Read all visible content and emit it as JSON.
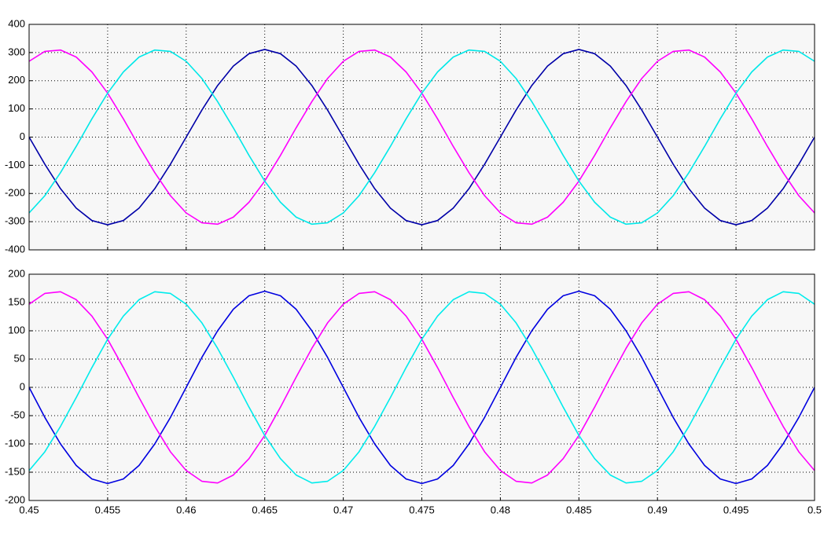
{
  "chart_data": [
    {
      "type": "line",
      "x": [
        0.45,
        0.451,
        0.452,
        0.453,
        0.454,
        0.455,
        0.456,
        0.457,
        0.458,
        0.459,
        0.46,
        0.461,
        0.462,
        0.463,
        0.464,
        0.465,
        0.466,
        0.467,
        0.468,
        0.469,
        0.47,
        0.471,
        0.472,
        0.473,
        0.474,
        0.475,
        0.476,
        0.477,
        0.478,
        0.479,
        0.48,
        0.481,
        0.482,
        0.483,
        0.484,
        0.485,
        0.486,
        0.487,
        0.488,
        0.489,
        0.49,
        0.491,
        0.492,
        0.493,
        0.494,
        0.495,
        0.496,
        0.497,
        0.498,
        0.499,
        0.5
      ],
      "series": [
        {
          "color": "#0000a8",
          "values": [
            0,
            -96,
            -183,
            -252,
            -296,
            -311,
            -296,
            -252,
            -183,
            -96,
            0,
            96,
            183,
            252,
            296,
            311,
            296,
            252,
            183,
            96,
            0,
            -96,
            -183,
            -252,
            -296,
            -311,
            -296,
            -252,
            -183,
            -96,
            0,
            96,
            183,
            252,
            296,
            311,
            296,
            252,
            183,
            96,
            0,
            -96,
            -183,
            -252,
            -296,
            -311,
            -296,
            -252,
            -183,
            -96,
            0
          ]
        },
        {
          "color": "#ff00ff",
          "values": [
            269,
            304,
            309,
            284,
            231,
            156,
            65,
            -33,
            -126,
            -208,
            -269,
            -304,
            -309,
            -284,
            -231,
            -156,
            -65,
            33,
            126,
            208,
            269,
            304,
            309,
            284,
            231,
            156,
            65,
            -33,
            -126,
            -208,
            -269,
            -304,
            -309,
            -284,
            -231,
            -156,
            -65,
            33,
            126,
            208,
            269,
            304,
            309,
            284,
            231,
            156,
            65,
            -33,
            -126,
            -208,
            -269
          ]
        },
        {
          "color": "#00e8e8",
          "values": [
            -269,
            -208,
            -126,
            -33,
            65,
            156,
            231,
            284,
            309,
            304,
            269,
            208,
            126,
            33,
            -65,
            -156,
            -231,
            -284,
            -309,
            -304,
            -269,
            -208,
            -126,
            -33,
            65,
            156,
            231,
            284,
            309,
            304,
            269,
            208,
            126,
            33,
            -65,
            -156,
            -231,
            -284,
            -309,
            -304,
            -269,
            -208,
            -126,
            -33,
            65,
            156,
            231,
            284,
            309,
            304,
            269
          ]
        }
      ],
      "xlim": [
        0.45,
        0.5
      ],
      "xticks": [
        0.45,
        0.455,
        0.46,
        0.465,
        0.47,
        0.475,
        0.48,
        0.485,
        0.49,
        0.495,
        0.5
      ],
      "show_xtick_labels": false,
      "ylim": [
        -400,
        400
      ],
      "yticks": [
        -400,
        -300,
        -200,
        -100,
        0,
        100,
        200,
        300,
        400
      ],
      "grid": true
    },
    {
      "type": "line",
      "x": [
        0.45,
        0.451,
        0.452,
        0.453,
        0.454,
        0.455,
        0.456,
        0.457,
        0.458,
        0.459,
        0.46,
        0.461,
        0.462,
        0.463,
        0.464,
        0.465,
        0.466,
        0.467,
        0.468,
        0.469,
        0.47,
        0.471,
        0.472,
        0.473,
        0.474,
        0.475,
        0.476,
        0.477,
        0.478,
        0.479,
        0.48,
        0.481,
        0.482,
        0.483,
        0.484,
        0.485,
        0.486,
        0.487,
        0.488,
        0.489,
        0.49,
        0.491,
        0.492,
        0.493,
        0.494,
        0.495,
        0.496,
        0.497,
        0.498,
        0.499,
        0.5
      ],
      "series": [
        {
          "color": "#0000e0",
          "values": [
            0,
            -53,
            -100,
            -138,
            -162,
            -170,
            -162,
            -138,
            -100,
            -53,
            0,
            53,
            100,
            138,
            162,
            170,
            162,
            138,
            100,
            53,
            0,
            -53,
            -100,
            -138,
            -162,
            -170,
            -162,
            -138,
            -100,
            -53,
            0,
            53,
            100,
            138,
            162,
            170,
            162,
            138,
            100,
            53,
            0,
            -53,
            -100,
            -138,
            -162,
            -170,
            -162,
            -138,
            -100,
            -53,
            0
          ]
        },
        {
          "color": "#ff00ff",
          "values": [
            147,
            166,
            169,
            155,
            126,
            85,
            35,
            -18,
            -69,
            -114,
            -147,
            -166,
            -169,
            -155,
            -126,
            -85,
            -35,
            18,
            69,
            114,
            147,
            166,
            169,
            155,
            126,
            85,
            35,
            -18,
            -69,
            -114,
            -147,
            -166,
            -169,
            -155,
            -126,
            -85,
            -35,
            18,
            69,
            114,
            147,
            166,
            169,
            155,
            126,
            85,
            35,
            -18,
            -69,
            -114,
            -147
          ]
        },
        {
          "color": "#00ecec",
          "values": [
            -147,
            -114,
            -69,
            -18,
            35,
            85,
            126,
            155,
            169,
            166,
            147,
            114,
            69,
            18,
            -35,
            -85,
            -126,
            -155,
            -169,
            -166,
            -147,
            -114,
            -69,
            -18,
            35,
            85,
            126,
            155,
            169,
            166,
            147,
            114,
            69,
            18,
            -35,
            -85,
            -126,
            -155,
            -169,
            -166,
            -147,
            -114,
            -69,
            -18,
            35,
            85,
            126,
            155,
            169,
            166,
            147
          ]
        }
      ],
      "xlim": [
        0.45,
        0.5
      ],
      "xticks": [
        0.45,
        0.455,
        0.46,
        0.465,
        0.47,
        0.475,
        0.48,
        0.485,
        0.49,
        0.495,
        0.5
      ],
      "show_xtick_labels": true,
      "ylim": [
        -200,
        200
      ],
      "yticks": [
        -200,
        -150,
        -100,
        -50,
        0,
        50,
        100,
        150,
        200
      ],
      "grid": true
    }
  ]
}
